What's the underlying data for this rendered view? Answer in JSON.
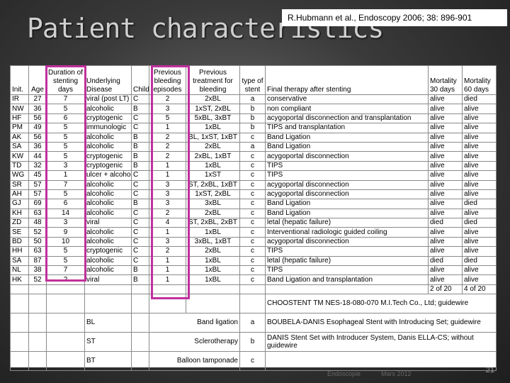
{
  "title": "Patient characteristics",
  "citation": "R.Hubmann et al., Endoscopy 2006; 38: 896-901",
  "table": {
    "headers": {
      "init": "Init.",
      "age": "Age",
      "duration": "Duration of stenting days",
      "disease": "Underlying Disease",
      "child": "Child",
      "prev_bleeding": "Previous bleeding episodes",
      "prev_treatment": "Previous treatment for bleeding",
      "stent_type": "type of stent",
      "final_therapy": "Final therapy after stenting",
      "mort30": "Mortality 30 days",
      "mort60": "Mortality 60 days"
    },
    "rows": [
      [
        "IR",
        "27",
        "7",
        "viral (post LT)",
        "C",
        "2",
        "2xBL",
        "a",
        "conservative",
        "alive",
        "died"
      ],
      [
        "NW",
        "36",
        "5",
        "alcoholic",
        "B",
        "3",
        "1xST, 2xBL",
        "b",
        "non compliant",
        "alive",
        "alive"
      ],
      [
        "HF",
        "56",
        "6",
        "cryptogenic",
        "C",
        "5",
        "5xBL, 3xBT",
        "b",
        "acygoportal disconnection and transplantation",
        "alive",
        "alive"
      ],
      [
        "PM",
        "49",
        "5",
        "immunologic",
        "C",
        "1",
        "1xBL",
        "b",
        "TIPS and transplantation",
        "alive",
        "alive"
      ],
      [
        "AK",
        "56",
        "5",
        "alcoholic",
        "B",
        "2",
        "BL, 1xST, 1xBT",
        "c",
        "Band Ligation",
        "alive",
        "alive"
      ],
      [
        "SA",
        "36",
        "5",
        "alcoholic",
        "B",
        "2",
        "2xBL",
        "a",
        "Band Ligation",
        "alive",
        "alive"
      ],
      [
        "KW",
        "44",
        "5",
        "cryptogenic",
        "B",
        "2",
        "2xBL, 1xBT",
        "c",
        "acygoportal disconnection",
        "alive",
        "alive"
      ],
      [
        "TD",
        "32",
        "3",
        "cryptogenic",
        "B",
        "1",
        "1xBL",
        "c",
        "TIPS",
        "alive",
        "alive"
      ],
      [
        "WG",
        "45",
        "1",
        "ulcer + alcohol",
        "C",
        "1",
        "1xST",
        "c",
        "TIPS",
        "alive",
        "alive"
      ],
      [
        "SR",
        "57",
        "7",
        "alcoholic",
        "C",
        "3",
        "ST, 2xBL, 1xBT",
        "c",
        "acygoportal disconnection",
        "alive",
        "alive"
      ],
      [
        "AH",
        "57",
        "5",
        "alcoholic",
        "C",
        "3",
        "1xST, 2xBL",
        "c",
        "acygoportal disconnection",
        "alive",
        "alive"
      ],
      [
        "GJ",
        "69",
        "6",
        "alcoholic",
        "B",
        "3",
        "3xBL",
        "c",
        "Band Ligation",
        "alive",
        "died"
      ],
      [
        "KH",
        "63",
        "14",
        "alcoholic",
        "C",
        "2",
        "2xBL",
        "c",
        "Band Ligation",
        "alive",
        "alive"
      ],
      [
        "ZD",
        "48",
        "3",
        "viral",
        "C",
        "4",
        "ST, 2xBL, 2xBT",
        "c",
        "letal (hepatic failure)",
        "died",
        "died"
      ],
      [
        "SE",
        "52",
        "9",
        "alcoholic",
        "C",
        "1",
        "1xBL",
        "c",
        "Interventional radiologic guided coiling",
        "alive",
        "alive"
      ],
      [
        "BD",
        "50",
        "10",
        "alcoholic",
        "C",
        "3",
        "3xBL, 1xBT",
        "c",
        "acygoportal disconnection",
        "alive",
        "alive"
      ],
      [
        "HH",
        "63",
        "5",
        "cryptogenic",
        "C",
        "2",
        "2xBL",
        "c",
        "TIPS",
        "alive",
        "alive"
      ],
      [
        "SA",
        "87",
        "5",
        "alcoholic",
        "C",
        "1",
        "1xBL",
        "c",
        "letal (hepatic failure)",
        "died",
        "died"
      ],
      [
        "NL",
        "38",
        "7",
        "alcoholic",
        "B",
        "1",
        "1xBL",
        "c",
        "TIPS",
        "alive",
        "alive"
      ],
      [
        "HK",
        "52",
        "2",
        "viral",
        "B",
        "1",
        "1xBL",
        "c",
        "Band Ligation and transplantation",
        "alive",
        "alive"
      ]
    ],
    "totals": {
      "mort30": "2 of 20",
      "mort60": "4 of 20"
    },
    "legend_abbrev": [
      {
        "abbr": "BL",
        "meaning": "Band ligation"
      },
      {
        "abbr": "ST",
        "meaning": "Sclerotherapy"
      },
      {
        "abbr": "BT",
        "meaning": "Balloon tamponade"
      }
    ],
    "legend_stent": [
      {
        "code": "a",
        "desc": "CHOOSTENT TM NES-18-080-070 M.I.Tech Co., Ltd; guidewire"
      },
      {
        "code": "b",
        "desc": "BOUBELA-DANIS Esophageal Stent with Introducing Set; guidewire"
      },
      {
        "code": "c",
        "desc": "DANIS Stent Set with Introducer System, Danis ELLA-CS; without guidewire"
      }
    ]
  },
  "footer": {
    "left": "Endoscopie",
    "mid": "Mars 2012",
    "page": "21"
  },
  "colors": {
    "highlight": "#c0309c",
    "background": "#3a3a3a"
  }
}
